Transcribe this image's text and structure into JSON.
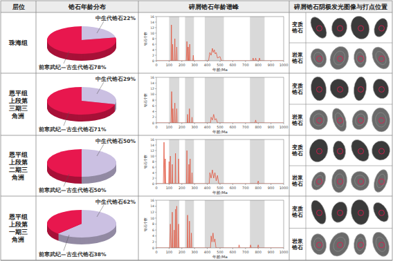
{
  "header": [
    "层位",
    "锆石年龄分布",
    "碎屑锆石年龄谱峰",
    "碎屑锆石阴极发光图像与打点位置"
  ],
  "layers": [
    "珠海组",
    "恩平组上段第三期三角洲",
    "恩平组上段第二期三角洲",
    "恩平组上段第一期三角洲"
  ],
  "cl_labels": [
    "变质锆石",
    "岩浆锆石"
  ],
  "chart_data": [
    {
      "type": "pie",
      "categories": [
        "中生代锆石",
        "前寒武纪—古生代锆石"
      ],
      "values": [
        22,
        78
      ],
      "value_labels": [
        "22%",
        "78%"
      ],
      "colors": [
        "#cbc0e2",
        "#e8174e"
      ]
    },
    {
      "type": "line",
      "x_label": "年龄/Ma",
      "y_label": "锆石个数",
      "color": "#e2553f",
      "xlim": [
        0,
        1000
      ],
      "xticks": [
        0,
        100,
        200,
        300,
        400,
        500,
        600,
        700,
        800,
        900,
        1000
      ],
      "ylim": [
        0,
        16
      ],
      "yticks": [
        0,
        2,
        4,
        6,
        8,
        10,
        12,
        14,
        16
      ],
      "shaded_ranges": [
        [
          100,
          180
        ],
        [
          225,
          295
        ],
        [
          380,
          530
        ],
        [
          735,
          850
        ]
      ],
      "x": [
        0,
        100,
        115,
        118,
        121,
        125,
        128,
        131,
        142,
        145,
        148,
        157,
        160,
        163,
        235,
        240,
        245,
        248,
        250,
        253,
        259,
        262,
        265,
        287,
        290,
        293,
        410,
        420,
        430,
        440,
        447,
        455,
        462,
        470,
        480,
        500,
        510,
        755,
        760,
        765,
        775,
        780,
        785,
        805,
        810,
        815,
        1000
      ],
      "values": [
        0,
        0,
        0,
        13,
        0,
        0,
        6,
        0,
        0,
        8,
        0,
        0,
        5,
        0,
        0,
        7,
        0,
        0,
        5,
        0,
        0,
        6,
        0,
        0,
        2,
        0,
        0,
        3,
        2,
        4.5,
        3,
        4,
        2.5,
        3,
        1,
        1.5,
        0,
        0,
        1,
        0,
        0,
        1,
        0,
        0,
        1,
        0,
        0
      ]
    },
    {
      "type": "pie",
      "categories": [
        "中生代锆石",
        "前寒武纪—古生代锆石"
      ],
      "values": [
        29,
        71
      ],
      "value_labels": [
        "29%",
        "71%"
      ],
      "colors": [
        "#cbc0e2",
        "#e8174e"
      ]
    },
    {
      "type": "line",
      "x_label": "年龄/Ma",
      "y_label": "锆石个数",
      "color": "#e2553f",
      "xlim": [
        0,
        1000
      ],
      "xticks": [
        0,
        100,
        200,
        300,
        400,
        500,
        600,
        700,
        800,
        900,
        1000
      ],
      "ylim": [
        0,
        16
      ],
      "yticks": [
        0,
        2,
        4,
        6,
        8,
        10,
        12,
        14,
        16
      ],
      "shaded_ranges": [
        [
          100,
          180
        ],
        [
          225,
          295
        ],
        [
          380,
          530
        ],
        [
          735,
          850
        ]
      ],
      "x": [
        0,
        115,
        120,
        125,
        127,
        130,
        133,
        142,
        145,
        148,
        157,
        160,
        163,
        242,
        245,
        248,
        257,
        260,
        263,
        277,
        280,
        283,
        425,
        430,
        440,
        450,
        460,
        470,
        480,
        775,
        780,
        785,
        1000
      ],
      "values": [
        0,
        0,
        11,
        0,
        0,
        5,
        0,
        0,
        7,
        0,
        0,
        5,
        0,
        0,
        3,
        0,
        0,
        5,
        0,
        0,
        2,
        0,
        0,
        2,
        1,
        3,
        1,
        1.5,
        0,
        0,
        1,
        0,
        0
      ]
    },
    {
      "type": "pie",
      "categories": [
        "中生代锆石",
        "前寒武纪—古生代锆石"
      ],
      "values": [
        50,
        50
      ],
      "value_labels": [
        "50%",
        "50%"
      ],
      "colors": [
        "#cbc0e2",
        "#e8174e"
      ]
    },
    {
      "type": "line",
      "x_label": "年龄/Ma",
      "y_label": "锆石个数",
      "color": "#e2553f",
      "xlim": [
        0,
        1000
      ],
      "xticks": [
        0,
        100,
        200,
        300,
        400,
        500,
        600,
        700,
        800,
        900,
        1000
      ],
      "ylim": [
        0,
        16
      ],
      "yticks": [
        0,
        2,
        4,
        6,
        8,
        10,
        12,
        14,
        16
      ],
      "shaded_ranges": [
        [
          100,
          180
        ],
        [
          225,
          295
        ],
        [
          380,
          530
        ],
        [
          735,
          850
        ]
      ],
      "x": [
        0,
        55,
        60,
        65,
        67,
        70,
        73,
        97,
        100,
        103,
        107,
        110,
        113,
        122,
        125,
        128,
        147,
        150,
        153,
        172,
        175,
        178,
        237,
        240,
        243,
        252,
        255,
        258,
        262,
        265,
        268,
        277,
        280,
        283,
        415,
        420,
        430,
        440,
        450,
        460,
        470,
        480,
        490,
        795,
        800,
        805,
        1000
      ],
      "values": [
        0,
        0,
        15,
        0,
        0,
        9,
        0,
        0,
        8,
        0,
        0,
        10,
        0,
        0,
        7,
        0,
        0,
        11,
        0,
        0,
        9,
        0,
        0,
        12,
        0,
        0,
        7,
        0,
        0,
        9,
        0,
        0,
        4,
        0,
        0,
        4,
        2,
        5,
        2,
        4,
        1,
        3,
        0,
        0,
        1,
        0,
        0
      ]
    },
    {
      "type": "pie",
      "categories": [
        "中生代锆石",
        "前寒武纪—古生代锆石"
      ],
      "values": [
        62,
        38
      ],
      "value_labels": [
        "62%",
        "38%"
      ],
      "colors": [
        "#cbc0e2",
        "#e8174e"
      ]
    },
    {
      "type": "line",
      "x_label": "年龄/Ma",
      "y_label": "锆石个数",
      "color": "#e2553f",
      "xlim": [
        0,
        1000
      ],
      "xticks": [
        0,
        100,
        200,
        300,
        400,
        500,
        600,
        700,
        800,
        900,
        1000
      ],
      "ylim": [
        0,
        16
      ],
      "yticks": [
        0,
        2,
        4,
        6,
        8,
        10,
        12,
        14,
        16
      ],
      "shaded_ranges": [
        [
          100,
          180
        ],
        [
          225,
          295
        ],
        [
          380,
          530
        ],
        [
          735,
          850
        ]
      ],
      "x": [
        0,
        105,
        110,
        115,
        122,
        125,
        128,
        137,
        140,
        143,
        147,
        150,
        153,
        157,
        160,
        163,
        172,
        175,
        178,
        242,
        245,
        248,
        257,
        260,
        263,
        272,
        275,
        278,
        425,
        430,
        437,
        445,
        452,
        460,
        468,
        645,
        650,
        655,
        735,
        740,
        745,
        795,
        800,
        805,
        1000
      ],
      "values": [
        0,
        0,
        8,
        0,
        0,
        12,
        0,
        0,
        6,
        0,
        0,
        13,
        0,
        0,
        14,
        0,
        0,
        8,
        0,
        0,
        11,
        0,
        0,
        9,
        0,
        0,
        5,
        0,
        0,
        4,
        2,
        5,
        2,
        3,
        0,
        0,
        1,
        0,
        0,
        1,
        0,
        0,
        1,
        0,
        0
      ]
    }
  ]
}
